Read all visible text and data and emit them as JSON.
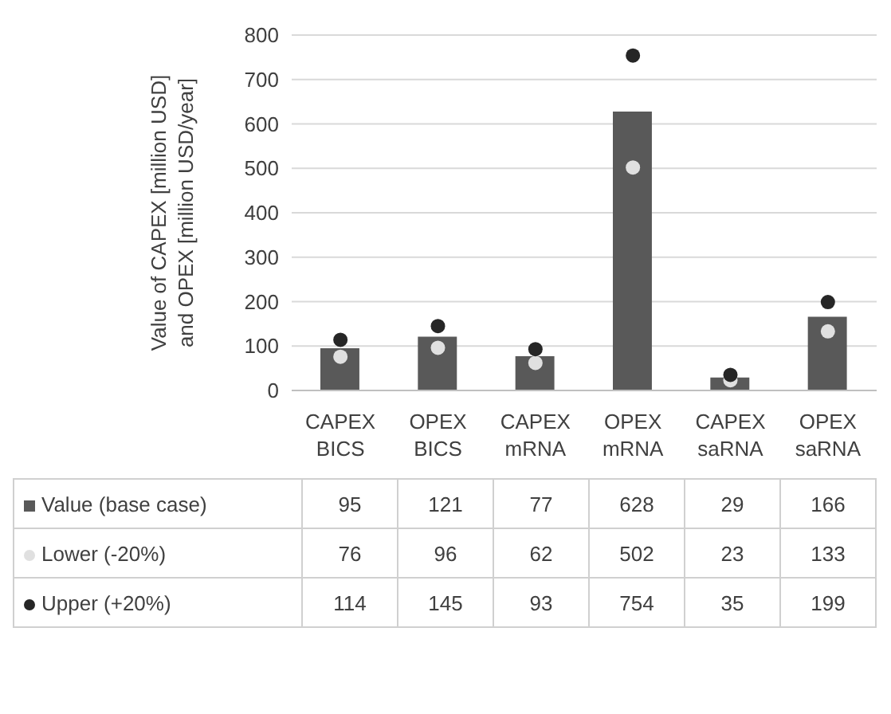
{
  "chart_data": {
    "type": "bar",
    "ylabel": "Value of CAPEX [million USD] and OPEX [million USD/year]",
    "categories": [
      "CAPEX BICS",
      "OPEX BICS",
      "CAPEX mRNA",
      "OPEX mRNA",
      "CAPEX saRNA",
      "OPEX saRNA"
    ],
    "series": [
      {
        "name": "Value (base case)",
        "color": "#595959",
        "values": [
          95,
          121,
          77,
          628,
          29,
          166
        ]
      },
      {
        "name": "Lower (-20%)",
        "type": "scatter",
        "color": "#e0e0e0",
        "values": [
          76,
          96,
          62,
          502,
          23,
          133
        ]
      },
      {
        "name": "Upper (+20%)",
        "type": "scatter",
        "color": "#262626",
        "values": [
          114,
          145,
          93,
          754,
          35,
          199
        ]
      }
    ],
    "ylim": [
      0,
      800
    ],
    "yticks": [
      0,
      100,
      200,
      300,
      400,
      500,
      600,
      700,
      800
    ],
    "grid": "y",
    "legend": "bottom",
    "marker": "circle",
    "data_labels": true
  }
}
